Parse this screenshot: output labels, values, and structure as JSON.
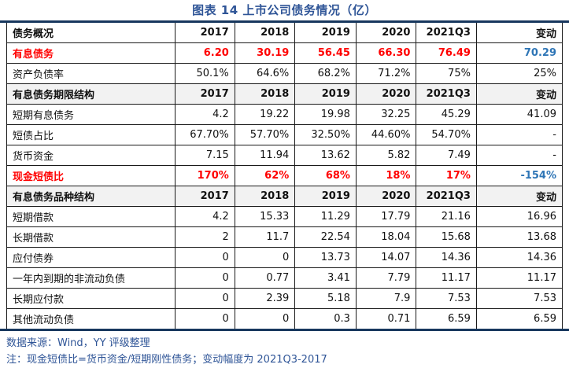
{
  "title": "图表 14 上市公司债务情况（亿）",
  "columns": [
    "2017",
    "2018",
    "2019",
    "2020",
    "2021Q3",
    "变动"
  ],
  "table": {
    "sections": [
      {
        "header_label": "债务概况",
        "header_gray": false,
        "rows": [
          {
            "label": "有息债务",
            "values": [
              "6.20",
              "30.19",
              "56.45",
              "66.30",
              "76.49",
              "70.29"
            ],
            "style": "red"
          },
          {
            "label": "资产负债率",
            "values": [
              "50.1%",
              "64.6%",
              "68.2%",
              "71.2%",
              "75%",
              "25%"
            ],
            "style": "normal"
          }
        ]
      },
      {
        "header_label": "有息债务期限结构",
        "header_gray": true,
        "rows": [
          {
            "label": "短期有息债务",
            "values": [
              "4.2",
              "19.22",
              "19.98",
              "32.25",
              "45.29",
              "41.09"
            ],
            "style": "normal"
          },
          {
            "label": "短债占比",
            "values": [
              "67.70%",
              "57.70%",
              "32.50%",
              "44.60%",
              "54.70%",
              "-"
            ],
            "style": "normal"
          },
          {
            "label": "货币资金",
            "values": [
              "7.15",
              "11.94",
              "13.62",
              "5.82",
              "7.49",
              "-"
            ],
            "style": "normal"
          },
          {
            "label": "现金短债比",
            "values": [
              "170%",
              "62%",
              "68%",
              "18%",
              "17%",
              "-154%"
            ],
            "style": "red"
          }
        ]
      },
      {
        "header_label": "有息债务品种结构",
        "header_gray": true,
        "rows": [
          {
            "label": "短期借款",
            "values": [
              "4.2",
              "15.33",
              "11.29",
              "17.79",
              "21.16",
              "16.96"
            ],
            "style": "normal"
          },
          {
            "label": "长期借款",
            "values": [
              "2",
              "11.7",
              "22.54",
              "18.04",
              "15.68",
              "13.68"
            ],
            "style": "normal"
          },
          {
            "label": "应付债券",
            "values": [
              "0",
              "0",
              "13.73",
              "14.07",
              "14.36",
              "14.36"
            ],
            "style": "normal"
          },
          {
            "label": "一年内到期的非流动负债",
            "values": [
              "0",
              "0.77",
              "3.41",
              "7.79",
              "11.17",
              "11.17"
            ],
            "style": "normal"
          },
          {
            "label": "长期应付款",
            "values": [
              "0",
              "2.39",
              "5.18",
              "7.9",
              "7.53",
              "7.53"
            ],
            "style": "normal"
          },
          {
            "label": "其他流动负债",
            "values": [
              "0",
              "0",
              "0.3",
              "0.71",
              "6.59",
              "6.59"
            ],
            "style": "normal"
          }
        ]
      }
    ]
  },
  "footer": {
    "source": "数据来源：Wind，YY 评级整理",
    "note": "注：现金短债比=货币资金/短期刚性债务；变动幅度为 2021Q3-2017"
  },
  "colors": {
    "title_blue": "#2F5597",
    "highlight_red": "#FF0000",
    "change_blue": "#2E75B6",
    "rule_navy": "#17375E",
    "section_header_gray": "#F2F2F2"
  }
}
